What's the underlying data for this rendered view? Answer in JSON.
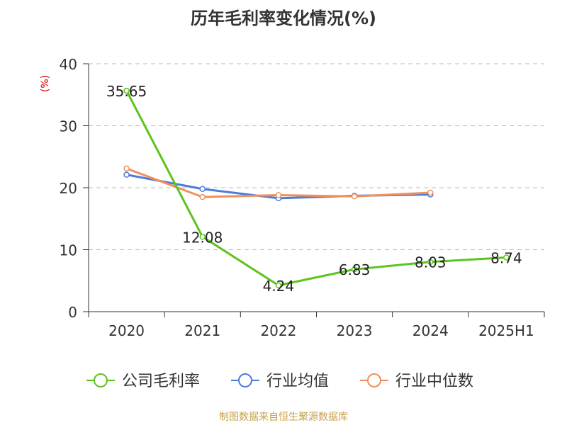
{
  "chart_data": {
    "type": "line",
    "title": "历年毛利率变化情况(%)",
    "ylabel": "(%)",
    "categories": [
      "2020",
      "2021",
      "2022",
      "2023",
      "2024",
      "2025H1"
    ],
    "ylim": [
      0,
      40
    ],
    "yticks": [
      0,
      10,
      20,
      30,
      40
    ],
    "grid": true,
    "legend_position": "bottom",
    "series": [
      {
        "name": "公司毛利率",
        "color": "#5cc41c",
        "values": [
          35.65,
          12.08,
          4.24,
          6.83,
          8.03,
          8.74
        ],
        "labels": [
          "35.65",
          "12.08",
          "4.24",
          "6.83",
          "8.03",
          "8.74"
        ]
      },
      {
        "name": "行业均值",
        "color": "#4b7bdc",
        "values": [
          22.1,
          19.8,
          18.3,
          18.7,
          18.9,
          null
        ]
      },
      {
        "name": "行业中位数",
        "color": "#f0905a",
        "values": [
          23.1,
          18.5,
          18.8,
          18.6,
          19.2,
          null
        ]
      }
    ]
  },
  "source_text": "制图数据来自恒生聚源数据库"
}
